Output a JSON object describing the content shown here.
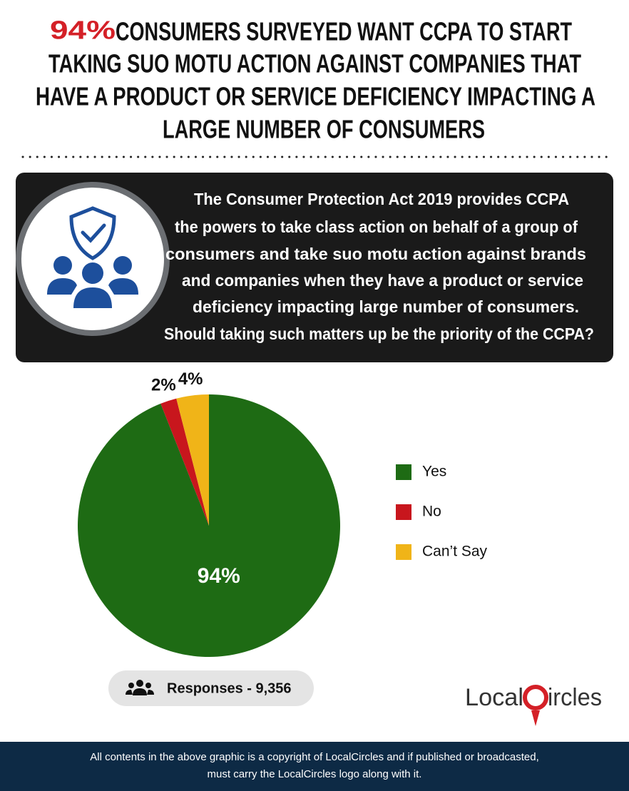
{
  "title": {
    "highlight": "94%",
    "lines": [
      " CONSUMERS SURVEYED WANT CCPA TO START",
      "TAKING SUO MOTU ACTION AGAINST COMPANIES THAT",
      "HAVE A PRODUCT OR SERVICE DEFICIENCY IMPACTING A",
      "LARGE NUMBER OF CONSUMERS"
    ]
  },
  "question": {
    "lines": [
      "The Consumer Protection Act 2019 provides CCPA",
      "the powers to take class action on behalf of a group of",
      "consumers and take suo motu action against brands",
      "and companies when they have a product or service",
      "deficiency impacting large number of consumers.",
      "Should taking such matters up be the priority of the CCPA?"
    ]
  },
  "chart_data": {
    "type": "pie",
    "categories": [
      "Yes",
      "No",
      "Can’t Say"
    ],
    "values": [
      94,
      2,
      4
    ],
    "value_labels": [
      "94%",
      "2%",
      "4%"
    ],
    "colors": [
      "#1e6b14",
      "#c8161d",
      "#f0b418"
    ],
    "legend": "right"
  },
  "responses": "Responses - 9,356",
  "logo": {
    "left": "Local",
    "right": "ircles"
  },
  "footer": {
    "lines": [
      "All contents in the above graphic is a copyright of LocalCircles and if published or broadcasted,",
      "must carry the LocalCircles logo along with it."
    ]
  }
}
